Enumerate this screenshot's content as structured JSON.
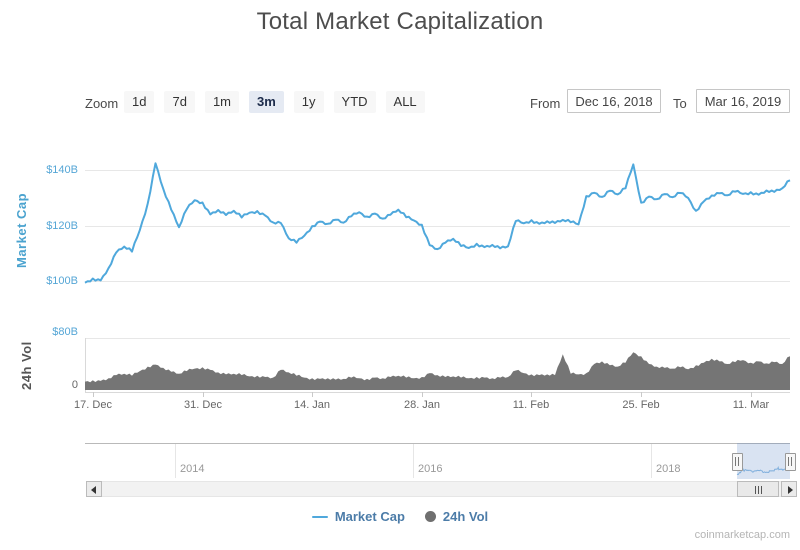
{
  "title": "Total Market Capitalization",
  "range_selector": {
    "zoom_label": "Zoom",
    "buttons": [
      "1d",
      "7d",
      "1m",
      "3m",
      "1y",
      "YTD",
      "ALL"
    ],
    "selected": "3m",
    "from_label": "From",
    "from_value": "Dec 16, 2018",
    "to_label": "To",
    "to_value": "Mar 16, 2019"
  },
  "navigator": {
    "year_labels": [
      "2014",
      "2016",
      "2018"
    ]
  },
  "legend": {
    "items": [
      {
        "label": "Market Cap",
        "symbol": "line",
        "color": "#4FA8DC"
      },
      {
        "label": "24h Vol",
        "symbol": "dot",
        "color": "#6F6F6F"
      }
    ]
  },
  "attribution": "coinmarketcap.com",
  "colors": {
    "line": "#4FA8DC",
    "volume": "#757575",
    "axis_label": "#55A6D6",
    "selected_button_bg": "#E5EAF3",
    "navigator_selection": "rgba(82,126,196,0.22)",
    "legend_text": "#4C7CA8",
    "navigator_mini_line": "#8FBEE4"
  },
  "chart_data": [
    {
      "type": "line",
      "name": "Market Cap",
      "title": "Total Market Capitalization",
      "color": "#4FA8DC",
      "unit": "USD billions",
      "x_range": [
        "Dec 16, 2018",
        "Mar 16, 2019"
      ],
      "x_interval": "daily",
      "x_tick_labels": [
        "17. Dec",
        "31. Dec",
        "14. Jan",
        "28. Jan",
        "11. Feb",
        "25. Feb",
        "11. Mar"
      ],
      "ylabel": "Market Cap",
      "ylim": [
        95,
        148
      ],
      "grid": true,
      "y_ticks": [
        {
          "value": 140,
          "label": "$140B"
        },
        {
          "value": 120,
          "label": "$120B"
        },
        {
          "value": 100,
          "label": "$100B"
        }
      ],
      "values": [
        99.4,
        100.9,
        100.2,
        104.6,
        110.3,
        112.4,
        110.6,
        118.3,
        127.9,
        142.4,
        133.2,
        125.7,
        119.4,
        125.9,
        129.1,
        128.3,
        124.0,
        125.6,
        123.8,
        125.3,
        122.9,
        124.6,
        125.2,
        123.6,
        121.1,
        120.9,
        115.4,
        113.8,
        116.3,
        119.8,
        121.4,
        120.6,
        122.1,
        121.0,
        123.3,
        124.8,
        123.2,
        124.3,
        122.5,
        123.9,
        125.7,
        123.0,
        121.8,
        120.3,
        112.9,
        111.5,
        113.8,
        115.2,
        112.6,
        111.9,
        113.4,
        112.2,
        113.0,
        111.8,
        112.5,
        121.6,
        120.8,
        121.9,
        120.6,
        121.5,
        120.9,
        122.0,
        121.2,
        120.4,
        130.6,
        131.8,
        130.3,
        132.5,
        131.2,
        133.4,
        142.0,
        128.2,
        130.4,
        129.5,
        131.3,
        130.2,
        131.7,
        129.9,
        125.3,
        128.7,
        130.8,
        131.6,
        130.9,
        132.2,
        131.4,
        132.0,
        131.1,
        132.6,
        132.1,
        133.4,
        136.3
      ]
    },
    {
      "type": "area",
      "name": "24h Vol",
      "color": "#757575",
      "unit": "USD billions",
      "x_range": [
        "Dec 16, 2018",
        "Mar 16, 2019"
      ],
      "x_interval": "daily",
      "ylabel": "24h Vol",
      "ylim": [
        0,
        80
      ],
      "y_ticks": [
        {
          "value": 80,
          "label": "$80B"
        },
        {
          "value": 0,
          "label": "0"
        }
      ],
      "values": [
        13,
        15,
        14,
        18,
        23,
        25,
        22,
        29,
        36,
        39,
        34,
        28,
        25,
        29,
        33,
        35,
        31,
        27,
        24,
        25,
        23,
        21,
        22,
        20,
        19,
        31,
        27,
        22,
        19,
        18,
        17,
        18,
        16,
        17,
        19,
        18,
        17,
        19,
        18,
        20,
        22,
        19,
        18,
        20,
        26,
        23,
        20,
        21,
        19,
        18,
        20,
        19,
        18,
        19,
        20,
        30,
        26,
        24,
        23,
        24,
        23,
        55,
        25,
        24,
        26,
        40,
        44,
        38,
        36,
        42,
        58,
        52,
        40,
        36,
        34,
        33,
        35,
        32,
        38,
        42,
        48,
        44,
        40,
        43,
        46,
        42,
        44,
        41,
        43,
        40,
        52
      ]
    }
  ]
}
